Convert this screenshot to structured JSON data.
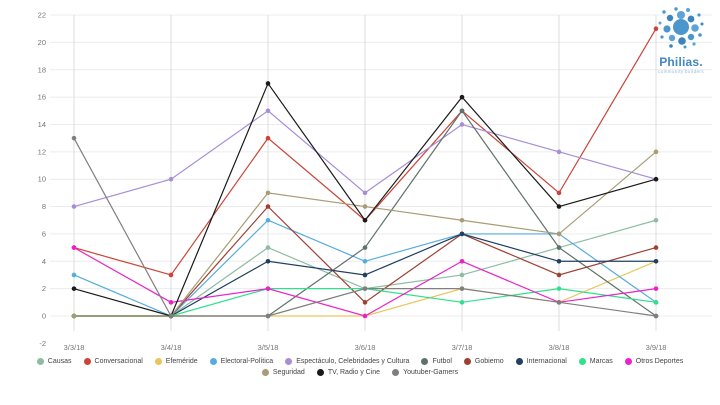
{
  "logo": {
    "name": "Philias.",
    "tagline": "community builders",
    "color": "#4387c2"
  },
  "chart_data": {
    "type": "line",
    "x": [
      "3/3/18",
      "3/4/18",
      "3/5/18",
      "3/6/18",
      "3/7/18",
      "3/8/18",
      "3/9/18"
    ],
    "ylim": [
      -2,
      22
    ],
    "yticks": [
      22,
      20,
      18,
      16,
      14,
      12,
      10,
      8,
      6,
      4,
      2,
      0,
      -2
    ],
    "grid": true,
    "legend_position": "bottom",
    "title": "",
    "xlabel": "",
    "ylabel": "",
    "series": [
      {
        "name": "Causas",
        "color": "#8cbda3",
        "values": [
          0,
          0,
          5,
          2,
          3,
          5,
          7
        ]
      },
      {
        "name": "Conversacional",
        "color": "#cb4437",
        "values": [
          5,
          3,
          13,
          7,
          15,
          9,
          21
        ]
      },
      {
        "name": "Efeméride",
        "color": "#e9c65a",
        "values": [
          0,
          0,
          0,
          0,
          2,
          1,
          4
        ]
      },
      {
        "name": "Electoral-Política",
        "color": "#55acdf",
        "values": [
          3,
          0,
          7,
          4,
          6,
          6,
          1
        ]
      },
      {
        "name": "Espectáculo, Celebridades y Cultura",
        "color": "#a78ed6",
        "values": [
          8,
          10,
          15,
          9,
          14,
          12,
          10
        ]
      },
      {
        "name": "Futbol",
        "color": "#5f7268",
        "values": [
          0,
          0,
          0,
          5,
          15,
          5,
          0
        ]
      },
      {
        "name": "Gobierno",
        "color": "#9e4032",
        "values": [
          0,
          0,
          8,
          1,
          6,
          3,
          5
        ]
      },
      {
        "name": "Internacional",
        "color": "#1f3f63",
        "values": [
          0,
          0,
          4,
          3,
          6,
          4,
          4
        ]
      },
      {
        "name": "Marcas",
        "color": "#2fe08e",
        "values": [
          0,
          0,
          2,
          2,
          1,
          2,
          1
        ]
      },
      {
        "name": "Otros Deportes",
        "color": "#e923c9",
        "values": [
          5,
          1,
          2,
          0,
          4,
          1,
          2
        ]
      },
      {
        "name": "Seguridad",
        "color": "#a99c74",
        "values": [
          0,
          0,
          9,
          8,
          7,
          6,
          12
        ]
      },
      {
        "name": "TV, Radio y Cine",
        "color": "#1a1a1a",
        "values": [
          2,
          0,
          17,
          7,
          16,
          8,
          10
        ]
      },
      {
        "name": "Youtuber-Gamers",
        "color": "#7f7f7f",
        "values": [
          13,
          0,
          0,
          2,
          2,
          1,
          0
        ]
      }
    ]
  }
}
